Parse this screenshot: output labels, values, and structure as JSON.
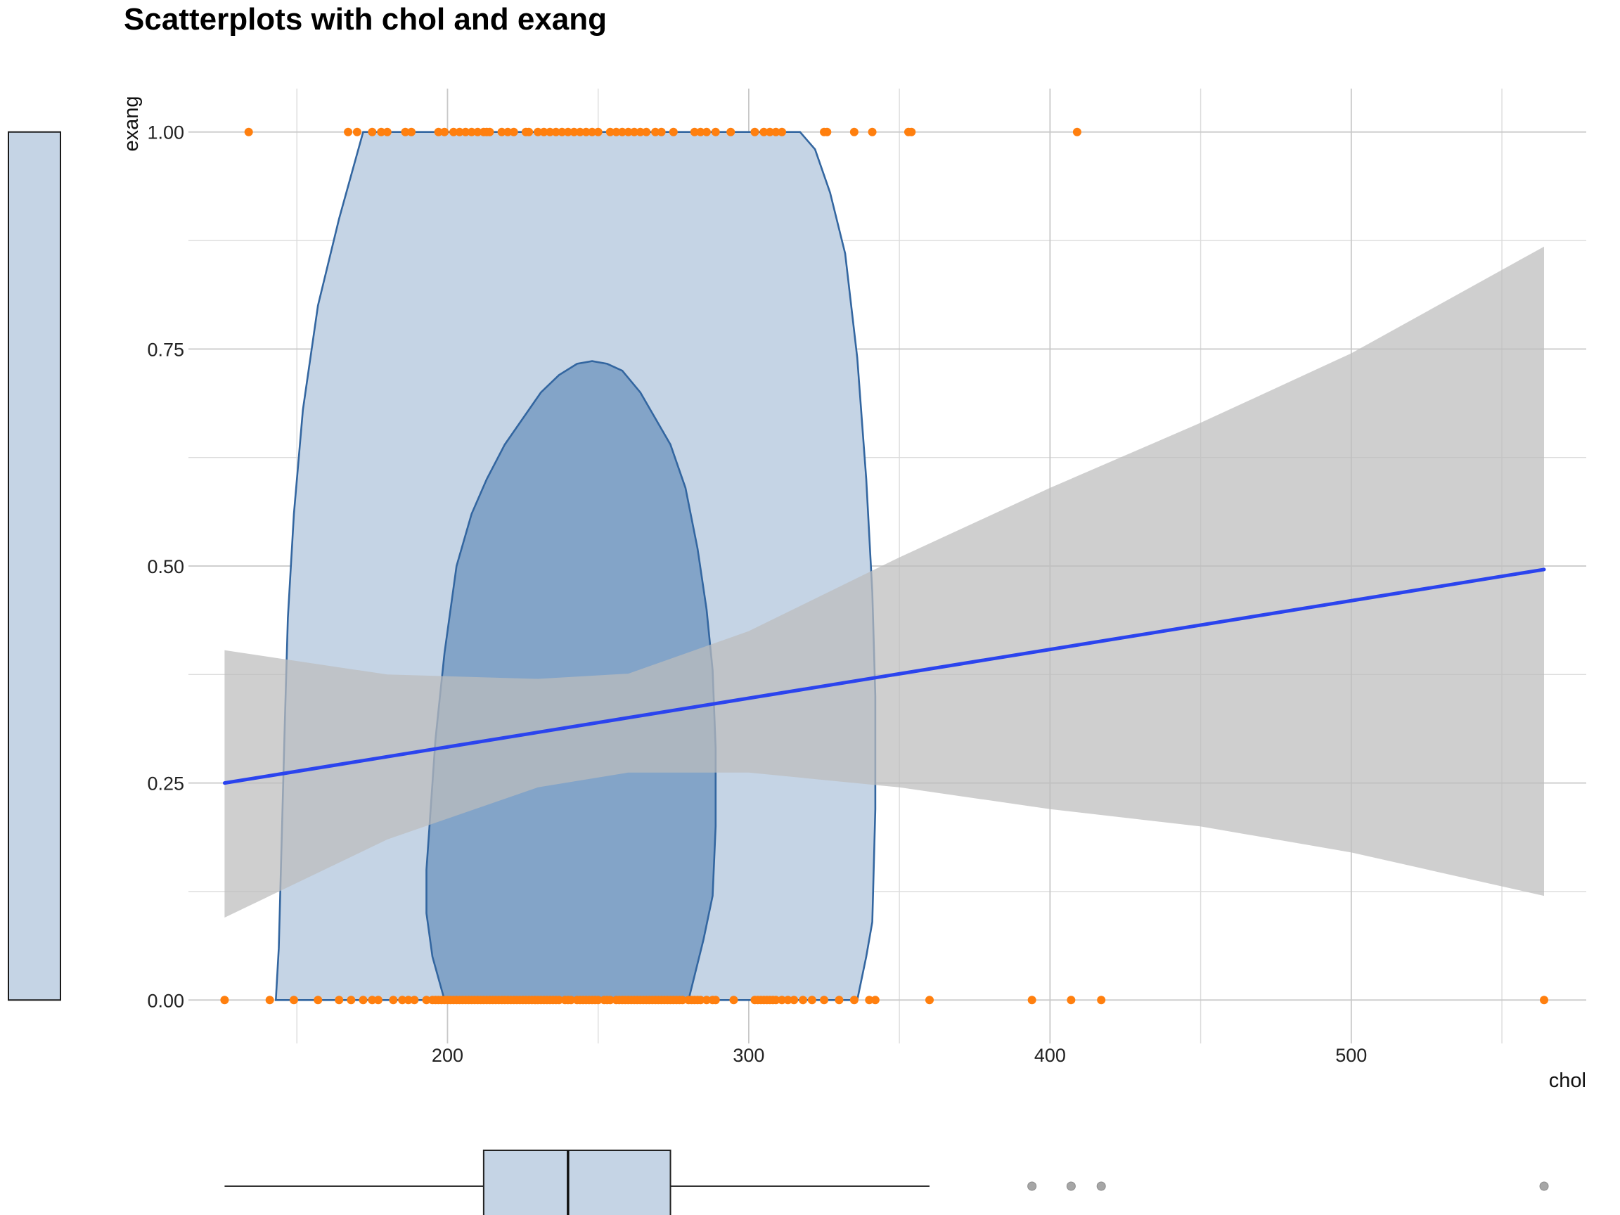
{
  "chart_data": {
    "type": "scatter",
    "title": "Scatterplots with chol and exang",
    "xlabel": "chol",
    "ylabel": "exang",
    "xlim": [
      114,
      578
    ],
    "ylim": [
      -0.05,
      1.05
    ],
    "x_ticks": [
      200,
      300,
      400,
      500
    ],
    "x_tick_labels": [
      "200",
      "300",
      "400",
      "500"
    ],
    "y_ticks": [
      0.0,
      0.25,
      0.5,
      0.75,
      1.0
    ],
    "y_tick_labels": [
      "0.00",
      "0.25",
      "0.50",
      "0.75",
      "1.00"
    ],
    "grid": true,
    "colors": {
      "points": "#ff7f0e",
      "regression_line": "#2b44ee",
      "confidence_band": "#bdbdbd",
      "violin_outer": "#c5d4e5",
      "violin_inner": "#7fa1c6",
      "violin_stroke": "#3366a0",
      "boxplot_fill": "#c5d4e5",
      "outlier": "#a6a6a6"
    },
    "points": {
      "y1_x": [
        134,
        167,
        170,
        175,
        178,
        180,
        186,
        188,
        197,
        199,
        202,
        204,
        206,
        208,
        210,
        212,
        213,
        214,
        218,
        220,
        222,
        226,
        227,
        230,
        232,
        234,
        236,
        238,
        240,
        242,
        244,
        246,
        248,
        250,
        254,
        256,
        258,
        260,
        262,
        264,
        266,
        269,
        271,
        275,
        282,
        284,
        286,
        289,
        294,
        302,
        305,
        307,
        309,
        311,
        325,
        326,
        335,
        341,
        353,
        354,
        409
      ],
      "y0_x": [
        126,
        141,
        149,
        157,
        164,
        168,
        172,
        175,
        177,
        182,
        185,
        187,
        189,
        193,
        195,
        196,
        197,
        198,
        199,
        200,
        201,
        202,
        203,
        204,
        205,
        206,
        207,
        208,
        209,
        210,
        211,
        212,
        213,
        214,
        215,
        216,
        217,
        218,
        219,
        220,
        221,
        222,
        223,
        224,
        225,
        226,
        227,
        228,
        229,
        230,
        231,
        232,
        233,
        234,
        235,
        236,
        237,
        239,
        240,
        241,
        243,
        244,
        245,
        246,
        247,
        248,
        249,
        250,
        252,
        253,
        254,
        256,
        257,
        258,
        259,
        260,
        261,
        262,
        263,
        264,
        265,
        266,
        267,
        268,
        269,
        270,
        271,
        272,
        273,
        274,
        275,
        276,
        277,
        278,
        280,
        281,
        282,
        283,
        284,
        286,
        288,
        289,
        295,
        302,
        303,
        304,
        305,
        306,
        307,
        308,
        309,
        311,
        313,
        315,
        318,
        321,
        325,
        330,
        335,
        340,
        342,
        360,
        394,
        407,
        417,
        564
      ]
    },
    "regression": {
      "x": [
        126,
        564
      ],
      "y": [
        0.25,
        0.496
      ],
      "band_x": [
        126,
        180,
        230,
        260,
        300,
        350,
        400,
        450,
        500,
        564
      ],
      "band_upper": [
        0.403,
        0.375,
        0.37,
        0.376,
        0.425,
        0.51,
        0.59,
        0.665,
        0.745,
        0.868
      ],
      "band_lower": [
        0.095,
        0.185,
        0.245,
        0.262,
        0.262,
        0.245,
        0.22,
        0.2,
        0.17,
        0.12
      ]
    },
    "density_contours": [
      {
        "level": "outer",
        "x": [
          143,
          144,
          145,
          146,
          147,
          149,
          152,
          157,
          164,
          172,
          182,
          317,
          322,
          327,
          332,
          336,
          339,
          341,
          342,
          342,
          341,
          339,
          336,
          282,
          143
        ],
        "y": [
          0.0,
          0.06,
          0.19,
          0.32,
          0.44,
          0.56,
          0.68,
          0.8,
          0.9,
          1.0,
          1.0,
          1.0,
          0.98,
          0.93,
          0.86,
          0.74,
          0.6,
          0.47,
          0.35,
          0.22,
          0.09,
          0.05,
          0.0,
          0.0,
          0.0
        ]
      },
      {
        "level": "inner",
        "x": [
          199,
          195,
          193,
          193,
          194,
          196,
          199,
          203,
          208,
          213,
          219,
          225,
          231,
          237,
          243,
          248,
          253,
          258,
          264,
          269,
          274,
          279,
          283,
          286,
          288,
          289,
          289,
          288,
          285,
          280,
          199
        ],
        "y": [
          0.0,
          0.05,
          0.1,
          0.15,
          0.2,
          0.3,
          0.4,
          0.5,
          0.56,
          0.6,
          0.64,
          0.67,
          0.7,
          0.72,
          0.733,
          0.736,
          0.733,
          0.725,
          0.7,
          0.67,
          0.64,
          0.59,
          0.52,
          0.45,
          0.38,
          0.29,
          0.2,
          0.12,
          0.07,
          0.0,
          0.0
        ]
      }
    ],
    "marginal_boxplot_x": {
      "whisker_low": 126,
      "q1": 212,
      "median": 240,
      "q3": 274,
      "whisker_high": 360,
      "outliers": [
        394,
        407,
        417,
        564
      ]
    },
    "marginal_boxplot_y": {
      "min": 0,
      "max": 1
    }
  }
}
